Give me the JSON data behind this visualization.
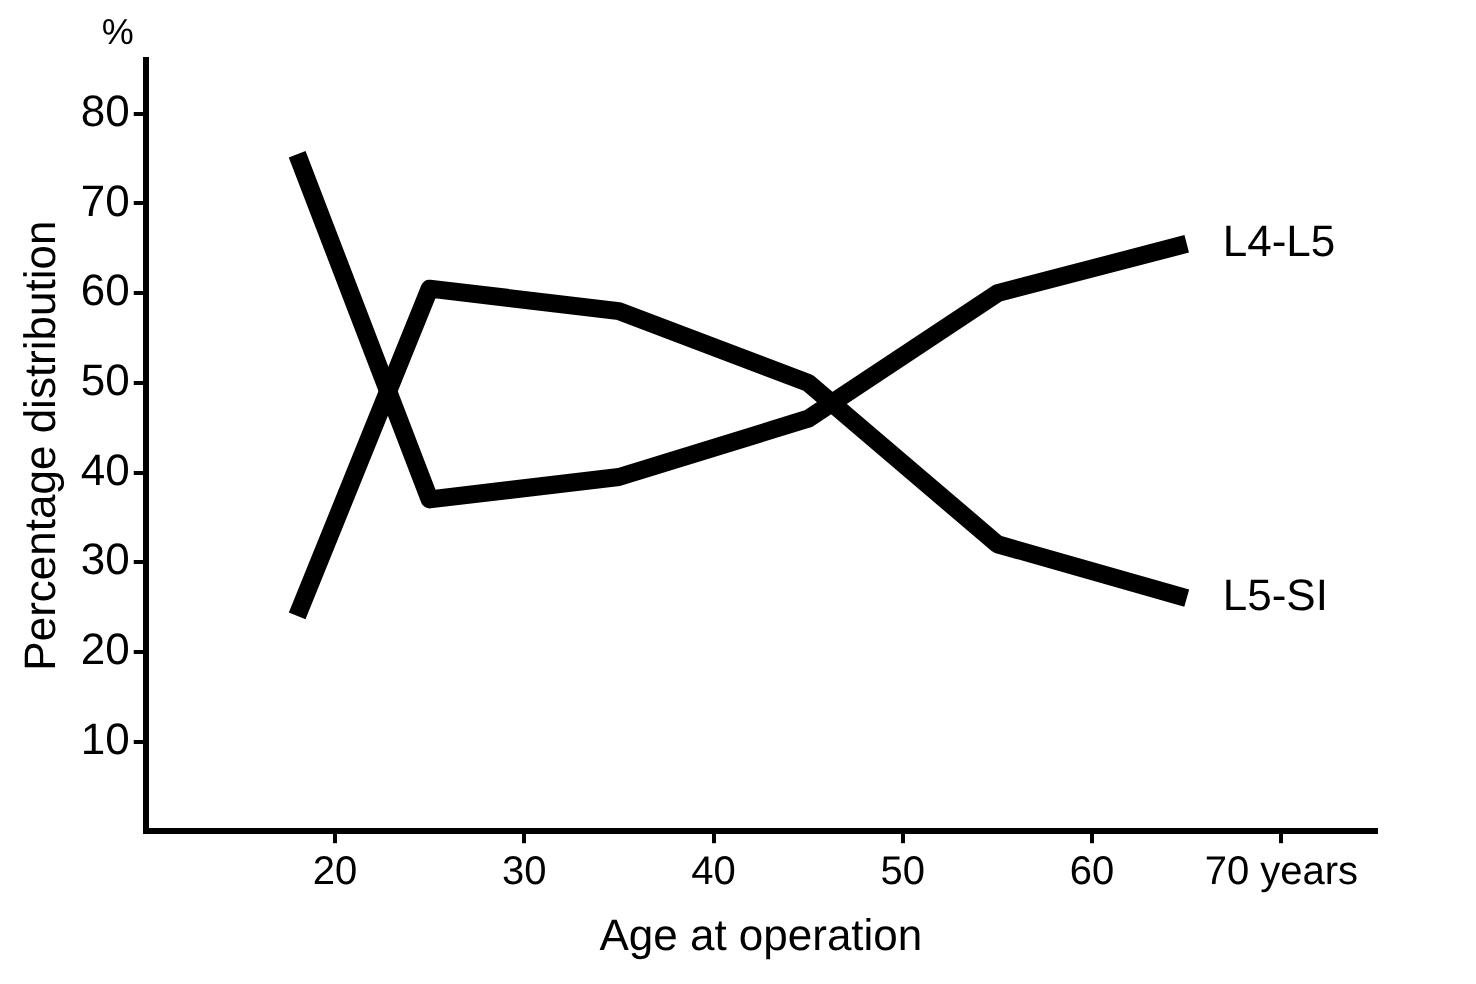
{
  "chart_data": {
    "type": "line",
    "xlabel": "Age at operation",
    "ylabel": "Percentage distribution",
    "x": [
      18,
      25,
      35,
      45,
      55,
      65
    ],
    "series": [
      {
        "name": "L4-L5",
        "color": "#000000",
        "values": [
          75.5,
          37,
          39.5,
          46,
          60,
          65.5
        ]
      },
      {
        "name": "L5-SI",
        "color": "#000000",
        "values": [
          24,
          60.5,
          58,
          50,
          32,
          26
        ]
      }
    ],
    "xlim": [
      10,
      75
    ],
    "xticks": [
      20,
      30,
      40,
      50,
      60,
      {
        "value": 70,
        "label": "70 years"
      }
    ],
    "ylim": [
      0,
      86
    ],
    "yticks": [
      10,
      20,
      30,
      40,
      50,
      60,
      70,
      80
    ],
    "annotations": [
      "%"
    ],
    "grid": false,
    "legend": false,
    "marker": "none",
    "line_style": "solid"
  }
}
